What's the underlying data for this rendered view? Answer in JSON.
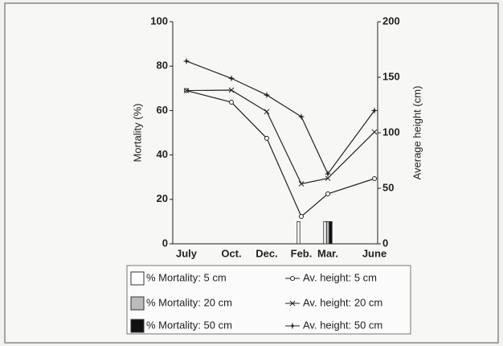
{
  "chart_data": {
    "type": "bar",
    "categories": [
      "July",
      "Oct.",
      "Dec.",
      "Feb.",
      "Mar.",
      "June"
    ],
    "y_label": "Mortality (%)",
    "y2_label": "Average height (cm)",
    "ylim": [
      0,
      100
    ],
    "yticks": [
      0,
      20,
      40,
      60,
      80,
      100
    ],
    "y2lim": [
      0,
      200
    ],
    "y2ticks": [
      0,
      50,
      100,
      150,
      200
    ],
    "series": [
      {
        "name": "% Mortality: 5 cm",
        "type": "bar",
        "axis": "y",
        "color": "#ffffff",
        "values": [
          null,
          null,
          null,
          10,
          10,
          null
        ]
      },
      {
        "name": "% Mortality: 20 cm",
        "type": "bar",
        "axis": "y",
        "color": "#bbbbbb",
        "values": [
          null,
          null,
          null,
          null,
          10,
          null
        ]
      },
      {
        "name": "% Mortality: 50 cm",
        "type": "bar",
        "axis": "y",
        "color": "#111111",
        "values": [
          null,
          null,
          null,
          null,
          10,
          null
        ]
      },
      {
        "name": "Av. height: 5 cm",
        "type": "line",
        "axis": "y2",
        "marker": "circle",
        "color": "#222222",
        "values": [
          138,
          127.5,
          95,
          24.6,
          45,
          58.7
        ]
      },
      {
        "name": "Av. height: 20 cm",
        "type": "line",
        "axis": "y2",
        "marker": "x",
        "color": "#222222",
        "values": [
          138,
          138.4,
          119,
          54,
          59,
          100.7
        ]
      },
      {
        "name": "Av. height: 50 cm",
        "type": "line",
        "axis": "y2",
        "marker": "plus",
        "color": "#222222",
        "values": [
          164.5,
          149,
          134,
          114.5,
          63,
          120
        ]
      }
    ]
  }
}
